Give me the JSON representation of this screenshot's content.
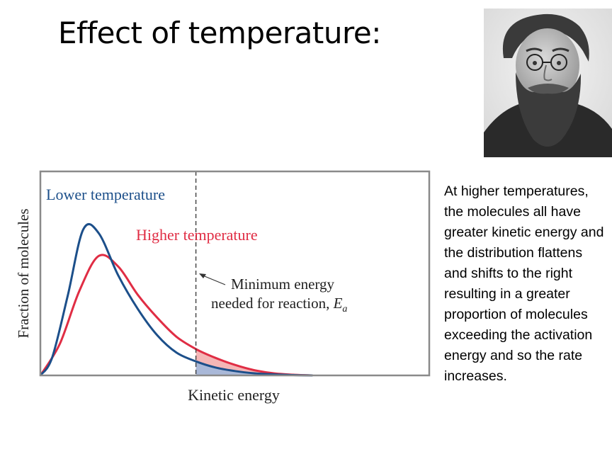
{
  "slide": {
    "title": "Effect of temperature:",
    "body": "At higher temperatures, the molecules all have greater kinetic energy and the distribution flattens and shifts to the right resulting in a greater proportion of molecules exceeding the activation energy and so the rate increases."
  },
  "portrait": {
    "icon": "bearded-man-portrait-icon"
  },
  "chart_data": {
    "type": "line",
    "xlabel": "Kinetic energy",
    "ylabel": "Fraction of molecules",
    "xlim": [
      0,
      1
    ],
    "ylim": [
      0,
      1
    ],
    "grid": false,
    "ticks": false,
    "series": [
      {
        "name": "Lower temperature",
        "color": "#1c4f8a",
        "x": [
          0,
          0.03,
          0.07,
          0.11,
          0.15,
          0.2,
          0.25,
          0.3,
          0.35,
          0.4,
          0.45,
          0.5,
          0.55,
          0.6,
          0.65,
          0.7
        ],
        "y": [
          0,
          0.1,
          0.45,
          0.83,
          0.81,
          0.57,
          0.38,
          0.23,
          0.13,
          0.08,
          0.045,
          0.025,
          0.012,
          0.006,
          0.002,
          0
        ]
      },
      {
        "name": "Higher temperature",
        "color": "#e02d44",
        "x": [
          0,
          0.05,
          0.1,
          0.15,
          0.2,
          0.25,
          0.3,
          0.35,
          0.4,
          0.45,
          0.5,
          0.55,
          0.6,
          0.65,
          0.7
        ],
        "y": [
          0,
          0.18,
          0.48,
          0.68,
          0.62,
          0.46,
          0.33,
          0.22,
          0.15,
          0.1,
          0.06,
          0.03,
          0.012,
          0.004,
          0
        ]
      }
    ],
    "threshold": {
      "x": 0.4,
      "label_lines": [
        "Minimum energy",
        "needed for reaction, "
      ],
      "symbol": "E",
      "subscript": "a"
    },
    "shading": {
      "higher_color": "#f4b6b6",
      "lower_color": "#a9b8d8"
    }
  }
}
